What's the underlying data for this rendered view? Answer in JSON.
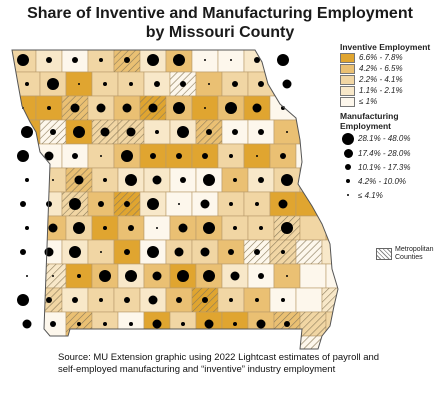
{
  "title_line1": "Share of Inventive and Manufacturing Employment",
  "title_line2": "by Missouri County",
  "legend": {
    "inventive_title": "Inventive Employment",
    "inventive": [
      {
        "label": "6.6% - 7.8%",
        "color": "#e0a530"
      },
      {
        "label": "4.2% - 6.5%",
        "color": "#eac073"
      },
      {
        "label": "2.2% - 4.1%",
        "color": "#f1d6a4"
      },
      {
        "label": "1.1% - 2.1%",
        "color": "#f8e8c9"
      },
      {
        "label": "≤ 1%",
        "color": "#fdf7ec"
      }
    ],
    "manufacturing_title": "Manufacturing Employment",
    "manufacturing": [
      {
        "label": "28.1% - 48.0%",
        "size": "largest"
      },
      {
        "label": "17.4% - 28.0%",
        "size": "large"
      },
      {
        "label": "10.1% - 17.3%",
        "size": "medium"
      },
      {
        "label": "4.2% - 10.0%",
        "size": "small"
      },
      {
        "label": "≤ 4.1%",
        "size": "smallest"
      }
    ],
    "metro_label": "Metropolitan Counties"
  },
  "source_text": "Source: MU Extension graphic using 2022 Lightcast estimates of payroll and self-employed manufacturing and “inventive” industry employment"
}
